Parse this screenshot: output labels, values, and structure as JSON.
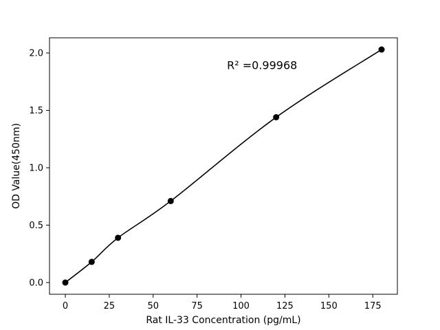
{
  "chart_data": {
    "type": "line",
    "title": "",
    "xlabel": "Rat IL-33 Concentration (pg/mL)",
    "ylabel": "OD Value(450nm)",
    "annotation": "R² =0.99968",
    "annotation_xy": [
      112,
      1.86
    ],
    "x": [
      0,
      15,
      30,
      60,
      120,
      180
    ],
    "y": [
      0.0,
      0.18,
      0.39,
      0.71,
      1.44,
      2.03
    ],
    "xlim": [
      -9,
      189
    ],
    "ylim": [
      -0.102,
      2.132
    ],
    "xticks": [
      0,
      25,
      50,
      75,
      100,
      125,
      150,
      175
    ],
    "yticks": [
      0.0,
      0.5,
      1.0,
      1.5,
      2.0
    ],
    "line_color": "#000000",
    "marker_color": "#000000",
    "marker": "circle",
    "marker_radius": 4.5,
    "axis_color": "#000000",
    "background": "#ffffff",
    "grid": false,
    "legend": null
  }
}
